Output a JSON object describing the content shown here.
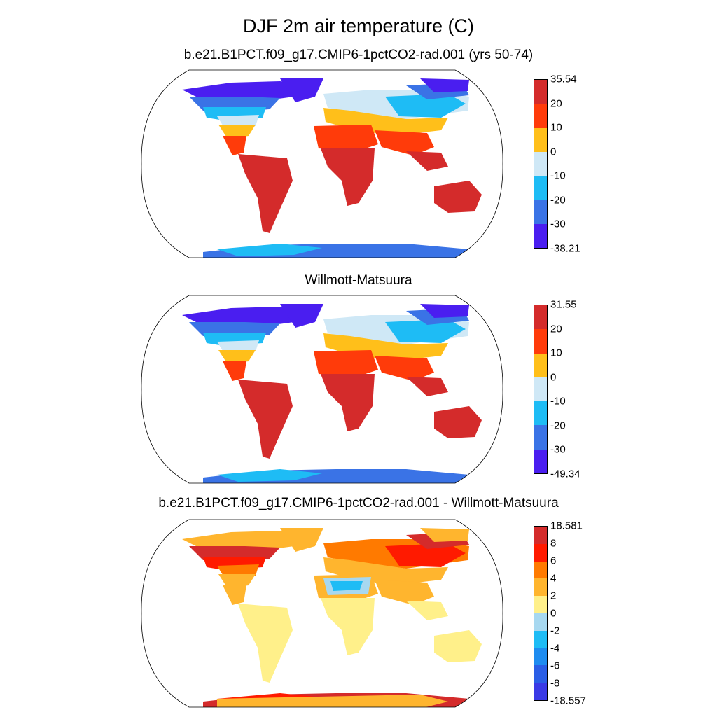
{
  "title": "DJF 2m air temperature (C)",
  "panels": [
    {
      "subtitle": "b.e21.B1PCT.f09_g17.CMIP6-1pctCO2-rad.001 (yrs 50-74)",
      "colorbar": {
        "labels": [
          "35.54",
          "20",
          "10",
          "0",
          "-10",
          "-20",
          "-30",
          "-38.21"
        ],
        "colors": [
          "#d42b2b",
          "#ff3b0a",
          "#ffbf1a",
          "#cfe8f6",
          "#1ebcf5",
          "#3a73e6",
          "#4a1ef0"
        ]
      },
      "map_colors": {
        "tropics": "#d42b2b",
        "subtropics": "#ff3b0a",
        "midlat": "#ffbf1a",
        "cool": "#cfe8f6",
        "cold": "#1ebcf5",
        "colder": "#3a73e6",
        "coldest": "#4a1ef0"
      }
    },
    {
      "subtitle": "Willmott-Matsuura",
      "colorbar": {
        "labels": [
          "31.55",
          "20",
          "10",
          "0",
          "-10",
          "-20",
          "-30",
          "-49.34"
        ],
        "colors": [
          "#d42b2b",
          "#ff3b0a",
          "#ffbf1a",
          "#cfe8f6",
          "#1ebcf5",
          "#3a73e6",
          "#4a1ef0"
        ]
      },
      "map_colors": {
        "tropics": "#d42b2b",
        "subtropics": "#ff3b0a",
        "midlat": "#ffbf1a",
        "cool": "#cfe8f6",
        "cold": "#1ebcf5",
        "colder": "#3a73e6",
        "coldest": "#4a1ef0"
      }
    },
    {
      "subtitle": "b.e21.B1PCT.f09_g17.CMIP6-1pctCO2-rad.001 - Willmott-Matsuura",
      "colorbar": {
        "labels": [
          "18.581",
          "8",
          "6",
          "4",
          "2",
          "0",
          "-2",
          "-4",
          "-6",
          "-8",
          "-18.557"
        ],
        "colors": [
          "#d42b2b",
          "#ff1a00",
          "#ff7a00",
          "#ffb52e",
          "#fff08a",
          "#a7d8f0",
          "#1ebcf5",
          "#1e8cf0",
          "#2a5ee6",
          "#3a3ae6"
        ]
      },
      "map_colors": {
        "tropics": "#fff08a",
        "subtropics": "#ffb52e",
        "midlat": "#ffb52e",
        "cool": "#ff7a00",
        "cold": "#ff1a00",
        "colder": "#d42b2b",
        "coldest": "#ffb52e",
        "desert": "#a7d8f0",
        "desert2": "#1ebcf5",
        "antarctic": "#ffb52e"
      }
    }
  ]
}
